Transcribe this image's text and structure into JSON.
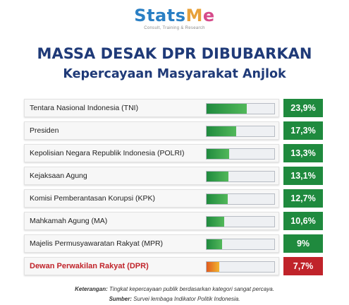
{
  "brand": {
    "name_part1": "Stats",
    "name_part2": "M",
    "name_part3": "e",
    "tagline": "Consult, Training & Research"
  },
  "headline": "MASSA DESAK DPR DIBUBARKAN",
  "subheadline": "Kepercayaan Masyarakat Anjlok",
  "colors": {
    "title": "#1f3a78",
    "bar_green": "#1f8a3e",
    "highlight_red": "#c0232a"
  },
  "chart_data": {
    "type": "bar",
    "orientation": "horizontal",
    "xlim": [
      0,
      40
    ],
    "categories": [
      "Tentara Nasional Indonesia (TNI)",
      "Presiden",
      "Kepolisian Negara Republik Indonesia (POLRI)",
      "Kejaksaan Agung",
      "Komisi Pemberantasan Korupsi (KPK)",
      "Mahkamah Agung (MA)",
      "Majelis Permusyawaratan Rakyat (MPR)",
      "Dewan Perwakilan Rakyat (DPR)"
    ],
    "values": [
      23.9,
      17.3,
      13.3,
      13.1,
      12.7,
      10.6,
      9,
      7.7
    ],
    "value_labels": [
      "23,9%",
      "17,3%",
      "13,3%",
      "13,1%",
      "12,7%",
      "10,6%",
      "9%",
      "7,7%"
    ],
    "highlight_index": 7
  },
  "footnote": {
    "label": "Keterangan:",
    "text": " Tingkat kepercayaan publik berdasarkan kategori sangat percaya."
  },
  "source": {
    "label": "Sumber:",
    "text": " Survei lembaga Indikator Politik Indonesia."
  }
}
